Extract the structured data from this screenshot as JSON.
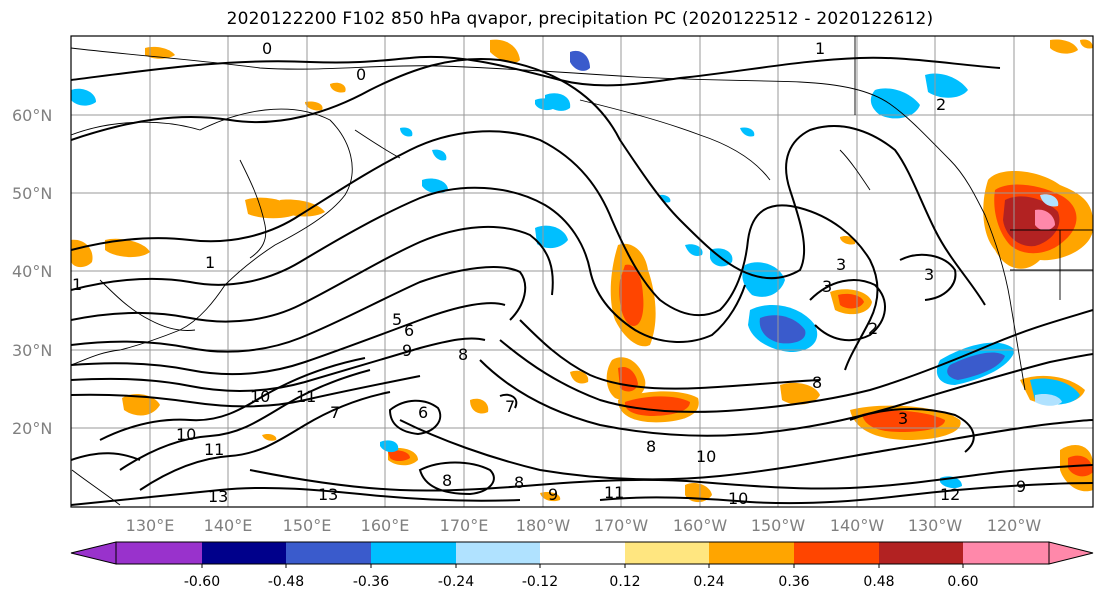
{
  "title": "2020122200 F102 850 hPa qvapor, precipitation PC (2020122512 - 2020122612)",
  "lat_labels": [
    "60°N",
    "50°N",
    "40°N",
    "30°N",
    "20°N"
  ],
  "lon_labels": [
    "130°E",
    "140°E",
    "150°E",
    "160°E",
    "170°E",
    "180°W",
    "170°W",
    "160°W",
    "150°W",
    "140°W",
    "130°W",
    "120°W"
  ],
  "contour_labels": [
    "0",
    "0",
    "1",
    "1",
    "1",
    "5",
    "6",
    "9",
    "8",
    "10",
    "11",
    "10",
    "11",
    "6",
    "7",
    "7",
    "8",
    "8",
    "9",
    "11",
    "13",
    "13",
    "10",
    "10",
    "8",
    "3",
    "3",
    "2",
    "2",
    "8",
    "3",
    "3",
    "12",
    "9"
  ],
  "colorbar": {
    "tick_labels": [
      "-0.60",
      "-0.48",
      "-0.36",
      "-0.24",
      "-0.12",
      "0.12",
      "0.24",
      "0.36",
      "0.48",
      "0.60"
    ],
    "colors": [
      "#9932CC",
      "#00008B",
      "#3A5BCC",
      "#00BFFF",
      "#B0E2FF",
      "#FFFFFF",
      "#FFE680",
      "#FFA500",
      "#FF4500",
      "#B22222",
      "#FF88AA"
    ]
  }
}
